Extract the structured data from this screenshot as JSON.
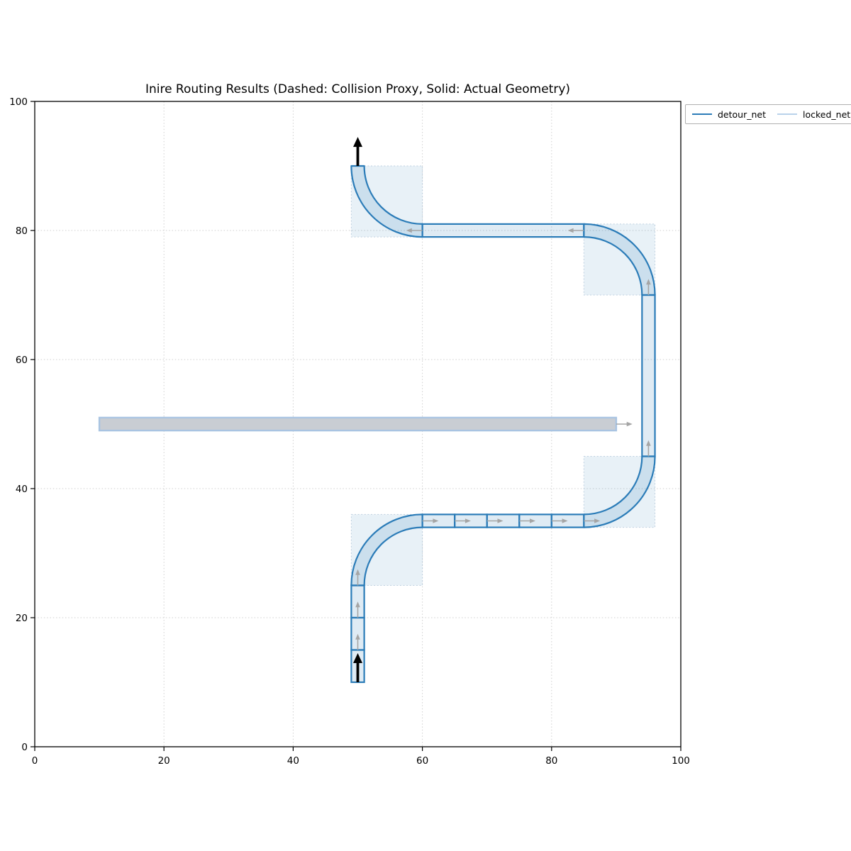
{
  "chart_data": {
    "type": "line",
    "title": "Inire Routing Results (Dashed: Collision Proxy, Solid: Actual Geometry)",
    "xlabel": "",
    "ylabel": "",
    "xlim": [
      0,
      100
    ],
    "ylim": [
      0,
      100
    ],
    "xticks": [
      0,
      20,
      40,
      60,
      80,
      100
    ],
    "yticks": [
      0,
      20,
      40,
      60,
      80,
      100
    ],
    "grid": true,
    "grid_style": "dotted",
    "legend_position": "outside upper right",
    "legend": [
      {
        "label": "detour_net",
        "color": "#2b7cb8"
      },
      {
        "label": "locked_net",
        "color": "#b9d2ea"
      }
    ],
    "detour_net": {
      "stroke": "#2b7cb8",
      "cell_fill": "rgba(43,124,184,0.15)",
      "proxy_fill": "rgba(43,124,184,0.11)",
      "proxy_stroke": "#bed0e0",
      "strip_width": 2,
      "bend_radius": 10,
      "inner_radius": 9,
      "outer_radius": 11,
      "start": [
        50,
        10
      ],
      "end": [
        50,
        90
      ],
      "centerline": [
        [
          50,
          10
        ],
        [
          50,
          25
        ],
        [
          60,
          35
        ],
        [
          85,
          35
        ],
        [
          95,
          45
        ],
        [
          95,
          70
        ],
        [
          85,
          80
        ],
        [
          60,
          80
        ],
        [
          50,
          90
        ]
      ],
      "straight_cells": [
        {
          "x": 49,
          "y": 10,
          "w": 2,
          "h": 5
        },
        {
          "x": 49,
          "y": 15,
          "w": 2,
          "h": 5
        },
        {
          "x": 49,
          "y": 20,
          "w": 2,
          "h": 5
        },
        {
          "x": 60,
          "y": 34,
          "w": 5,
          "h": 2
        },
        {
          "x": 65,
          "y": 34,
          "w": 5,
          "h": 2
        },
        {
          "x": 70,
          "y": 34,
          "w": 5,
          "h": 2
        },
        {
          "x": 75,
          "y": 34,
          "w": 5,
          "h": 2
        },
        {
          "x": 80,
          "y": 34,
          "w": 5,
          "h": 2
        },
        {
          "x": 94,
          "y": 45,
          "w": 2,
          "h": 25
        },
        {
          "x": 60,
          "y": 79,
          "w": 25,
          "h": 2
        }
      ],
      "bends": [
        {
          "cx": 60,
          "cy": 25,
          "a0": 180,
          "a1": 90
        },
        {
          "cx": 85,
          "cy": 45,
          "a0": 270,
          "a1": 360
        },
        {
          "cx": 85,
          "cy": 70,
          "a0": 0,
          "a1": 90
        },
        {
          "cx": 60,
          "cy": 90,
          "a0": 270,
          "a1": 180
        }
      ],
      "proxy_squares": [
        {
          "x": 49,
          "y": 25,
          "size": 11
        },
        {
          "x": 85,
          "y": 34,
          "size": 11
        },
        {
          "x": 85,
          "y": 70,
          "size": 11
        },
        {
          "x": 49,
          "y": 79,
          "size": 11
        }
      ],
      "direction_arrows": [
        [
          50,
          15,
          0,
          2.5
        ],
        [
          50,
          20,
          0,
          2.5
        ],
        [
          50,
          25,
          0,
          2.5
        ],
        [
          60,
          35,
          2.5,
          0
        ],
        [
          65,
          35,
          2.5,
          0
        ],
        [
          70,
          35,
          2.5,
          0
        ],
        [
          75,
          35,
          2.5,
          0
        ],
        [
          80,
          35,
          2.5,
          0
        ],
        [
          85,
          35,
          2.5,
          0
        ],
        [
          95,
          45,
          0,
          2.5
        ],
        [
          95,
          70,
          0,
          2.5
        ],
        [
          85,
          80,
          -2.5,
          0
        ],
        [
          60,
          80,
          -2.5,
          0
        ]
      ],
      "endpoint_arrows": [
        [
          50,
          10,
          0,
          4.5
        ],
        [
          50,
          90,
          0,
          4.5
        ]
      ]
    },
    "locked_net": {
      "stroke": "#a9c4e2",
      "fill": "#c9cdd3",
      "rect": {
        "x": 10,
        "y": 49,
        "w": 80,
        "h": 2
      },
      "direction_arrows": [
        [
          90,
          50,
          2.5,
          0
        ]
      ]
    },
    "axis_color": "#000000",
    "grid_color": "#cfcfcf",
    "arrow_gray": "#a5a5a5",
    "arrow_black": "#000000"
  }
}
